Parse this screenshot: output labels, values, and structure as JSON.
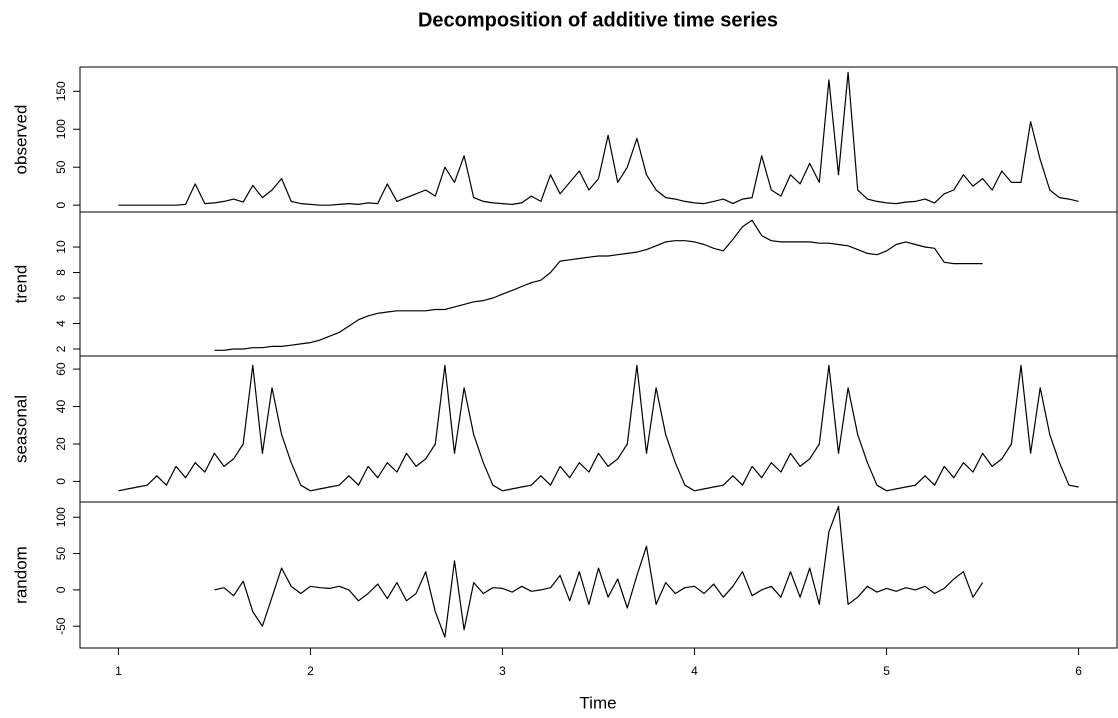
{
  "chart_data": [
    {
      "type": "line",
      "title": "Decomposition of additive time series",
      "y_label": "observed",
      "color": "#000000",
      "xlim": [
        0.8,
        6.2
      ],
      "ylim": [
        -9,
        182
      ],
      "yticks": [
        0,
        50,
        100,
        150
      ],
      "x": [
        1,
        1.05,
        1.1,
        1.15,
        1.2,
        1.25,
        1.3,
        1.35,
        1.4,
        1.45,
        1.5,
        1.55,
        1.6,
        1.65,
        1.7,
        1.75,
        1.8,
        1.85,
        1.9,
        1.95,
        2,
        2.05,
        2.1,
        2.15,
        2.2,
        2.25,
        2.3,
        2.35,
        2.4,
        2.45,
        2.5,
        2.55,
        2.6,
        2.65,
        2.7,
        2.75,
        2.8,
        2.85,
        2.9,
        2.95,
        3,
        3.05,
        3.1,
        3.15,
        3.2,
        3.25,
        3.3,
        3.35,
        3.4,
        3.45,
        3.5,
        3.55,
        3.6,
        3.65,
        3.7,
        3.75,
        3.8,
        3.85,
        3.9,
        3.95,
        4,
        4.05,
        4.1,
        4.15,
        4.2,
        4.25,
        4.3,
        4.35,
        4.4,
        4.45,
        4.5,
        4.55,
        4.6,
        4.65,
        4.7,
        4.75,
        4.8,
        4.85,
        4.9,
        4.95,
        5,
        5.05,
        5.1,
        5.15,
        5.2,
        5.25,
        5.3,
        5.35,
        5.4,
        5.45,
        5.5,
        5.55,
        5.6,
        5.65,
        5.7,
        5.75,
        5.8,
        5.85,
        5.9,
        5.95,
        6
      ],
      "values": [
        0,
        0,
        0,
        0,
        0,
        0,
        0,
        1,
        28,
        2,
        3,
        5,
        8,
        4,
        26,
        10,
        20,
        35,
        5,
        2,
        1,
        0,
        0,
        1,
        2,
        1,
        3,
        2,
        28,
        5,
        10,
        15,
        20,
        12,
        50,
        30,
        65,
        10,
        5,
        3,
        2,
        1,
        3,
        12,
        5,
        40,
        15,
        30,
        45,
        20,
        35,
        92,
        30,
        50,
        88,
        40,
        20,
        10,
        8,
        5,
        3,
        2,
        5,
        8,
        2,
        8,
        10,
        65,
        20,
        12,
        40,
        28,
        55,
        30,
        165,
        40,
        175,
        20,
        8,
        5,
        3,
        2,
        4,
        5,
        8,
        3,
        15,
        20,
        40,
        25,
        35,
        20,
        45,
        30,
        30,
        110,
        60,
        20,
        10,
        8,
        5
      ]
    },
    {
      "type": "line",
      "y_label": "trend",
      "color": "#000000",
      "xlim": [
        0.8,
        6.2
      ],
      "ylim": [
        1.45,
        12.75
      ],
      "yticks": [
        2,
        4,
        6,
        8,
        10
      ],
      "x": [
        1.5,
        1.55,
        1.6,
        1.65,
        1.7,
        1.75,
        1.8,
        1.85,
        1.9,
        1.95,
        2,
        2.05,
        2.1,
        2.15,
        2.2,
        2.25,
        2.3,
        2.35,
        2.4,
        2.45,
        2.5,
        2.55,
        2.6,
        2.65,
        2.7,
        2.75,
        2.8,
        2.85,
        2.9,
        2.95,
        3,
        3.05,
        3.1,
        3.15,
        3.2,
        3.25,
        3.3,
        3.35,
        3.4,
        3.45,
        3.5,
        3.55,
        3.6,
        3.65,
        3.7,
        3.75,
        3.8,
        3.85,
        3.9,
        3.95,
        4,
        4.05,
        4.1,
        4.15,
        4.2,
        4.25,
        4.3,
        4.35,
        4.4,
        4.45,
        4.5,
        4.55,
        4.6,
        4.65,
        4.7,
        4.75,
        4.8,
        4.85,
        4.9,
        4.95,
        5,
        5.05,
        5.1,
        5.15,
        5.2,
        5.25,
        5.3,
        5.35,
        5.4,
        5.45,
        5.5
      ],
      "values": [
        1.9,
        1.9,
        2.0,
        2.0,
        2.1,
        2.1,
        2.2,
        2.2,
        2.3,
        2.4,
        2.5,
        2.7,
        3.0,
        3.3,
        3.8,
        4.3,
        4.6,
        4.8,
        4.9,
        5.0,
        5.0,
        5.0,
        5.0,
        5.1,
        5.1,
        5.3,
        5.5,
        5.7,
        5.8,
        6.0,
        6.3,
        6.6,
        6.9,
        7.2,
        7.4,
        8.0,
        8.9,
        9.0,
        9.1,
        9.2,
        9.3,
        9.3,
        9.4,
        9.5,
        9.6,
        9.8,
        10.1,
        10.4,
        10.5,
        10.5,
        10.4,
        10.2,
        9.9,
        9.7,
        10.6,
        11.6,
        12.1,
        10.9,
        10.5,
        10.4,
        10.4,
        10.4,
        10.4,
        10.3,
        10.3,
        10.2,
        10.1,
        9.8,
        9.5,
        9.4,
        9.7,
        10.2,
        10.4,
        10.2,
        10.0,
        9.9,
        8.8,
        8.7,
        8.7,
        8.7,
        8.7
      ]
    },
    {
      "type": "line",
      "y_label": "seasonal",
      "color": "#000000",
      "xlim": [
        0.8,
        6.2
      ],
      "ylim": [
        -11,
        67
      ],
      "yticks": [
        0,
        20,
        40,
        60
      ],
      "x": [
        1,
        1.05,
        1.1,
        1.15,
        1.2,
        1.25,
        1.3,
        1.35,
        1.4,
        1.45,
        1.5,
        1.55,
        1.6,
        1.65,
        1.7,
        1.75,
        1.8,
        1.85,
        1.9,
        1.95,
        2,
        2.05,
        2.1,
        2.15,
        2.2,
        2.25,
        2.3,
        2.35,
        2.4,
        2.45,
        2.5,
        2.55,
        2.6,
        2.65,
        2.7,
        2.75,
        2.8,
        2.85,
        2.9,
        2.95,
        3,
        3.05,
        3.1,
        3.15,
        3.2,
        3.25,
        3.3,
        3.35,
        3.4,
        3.45,
        3.5,
        3.55,
        3.6,
        3.65,
        3.7,
        3.75,
        3.8,
        3.85,
        3.9,
        3.95,
        4,
        4.05,
        4.1,
        4.15,
        4.2,
        4.25,
        4.3,
        4.35,
        4.4,
        4.45,
        4.5,
        4.55,
        4.6,
        4.65,
        4.7,
        4.75,
        4.8,
        4.85,
        4.9,
        4.95,
        5,
        5.05,
        5.1,
        5.15,
        5.2,
        5.25,
        5.3,
        5.35,
        5.4,
        5.45,
        5.5,
        5.55,
        5.6,
        5.65,
        5.7,
        5.75,
        5.8,
        5.85,
        5.9,
        5.95,
        6
      ],
      "values": [
        -5,
        -4,
        -3,
        -2,
        3,
        -2,
        8,
        2,
        10,
        5,
        15,
        8,
        12,
        20,
        62,
        15,
        50,
        25,
        10,
        -2,
        -5,
        -4,
        -3,
        -2,
        3,
        -2,
        8,
        2,
        10,
        5,
        15,
        8,
        12,
        20,
        62,
        15,
        50,
        25,
        10,
        -2,
        -5,
        -4,
        -3,
        -2,
        3,
        -2,
        8,
        2,
        10,
        5,
        15,
        8,
        12,
        20,
        62,
        15,
        50,
        25,
        10,
        -2,
        -5,
        -4,
        -3,
        -2,
        3,
        -2,
        8,
        2,
        10,
        5,
        15,
        8,
        12,
        20,
        62,
        15,
        50,
        25,
        10,
        -2,
        -5,
        -4,
        -3,
        -2,
        3,
        -2,
        8,
        2,
        10,
        5,
        15,
        8,
        12,
        20,
        62,
        15,
        50,
        25,
        10,
        -2,
        -3
      ]
    },
    {
      "type": "line",
      "y_label": "random",
      "x_label": "Time",
      "color": "#000000",
      "xlim": [
        0.8,
        6.2
      ],
      "ylim": [
        -80,
        121
      ],
      "yticks": [
        -50,
        0,
        50,
        100
      ],
      "xticks": [
        1,
        2,
        3,
        4,
        5,
        6
      ],
      "x": [
        1.5,
        1.55,
        1.6,
        1.65,
        1.7,
        1.75,
        1.8,
        1.85,
        1.9,
        1.95,
        2,
        2.05,
        2.1,
        2.15,
        2.2,
        2.25,
        2.3,
        2.35,
        2.4,
        2.45,
        2.5,
        2.55,
        2.6,
        2.65,
        2.7,
        2.75,
        2.8,
        2.85,
        2.9,
        2.95,
        3,
        3.05,
        3.1,
        3.15,
        3.2,
        3.25,
        3.3,
        3.35,
        3.4,
        3.45,
        3.5,
        3.55,
        3.6,
        3.65,
        3.7,
        3.75,
        3.8,
        3.85,
        3.9,
        3.95,
        4,
        4.05,
        4.1,
        4.15,
        4.2,
        4.25,
        4.3,
        4.35,
        4.4,
        4.45,
        4.5,
        4.55,
        4.6,
        4.65,
        4.7,
        4.75,
        4.8,
        4.85,
        4.9,
        4.95,
        5,
        5.05,
        5.1,
        5.15,
        5.2,
        5.25,
        5.3,
        5.35,
        5.4,
        5.45,
        5.5
      ],
      "values": [
        0,
        3,
        -8,
        12,
        -30,
        -50,
        -10,
        30,
        5,
        -5,
        5,
        3,
        2,
        5,
        0,
        -15,
        -5,
        8,
        -12,
        10,
        -15,
        -5,
        25,
        -30,
        -65,
        40,
        -55,
        10,
        -5,
        3,
        2,
        -3,
        5,
        -2,
        0,
        3,
        20,
        -15,
        25,
        -20,
        30,
        -10,
        15,
        -25,
        20,
        60,
        -20,
        10,
        -5,
        3,
        5,
        -5,
        8,
        -10,
        5,
        25,
        -8,
        0,
        5,
        -10,
        25,
        -10,
        30,
        -20,
        80,
        115,
        -20,
        -10,
        5,
        -3,
        2,
        -2,
        3,
        0,
        5,
        -5,
        2,
        15,
        25,
        -10,
        10
      ]
    }
  ]
}
